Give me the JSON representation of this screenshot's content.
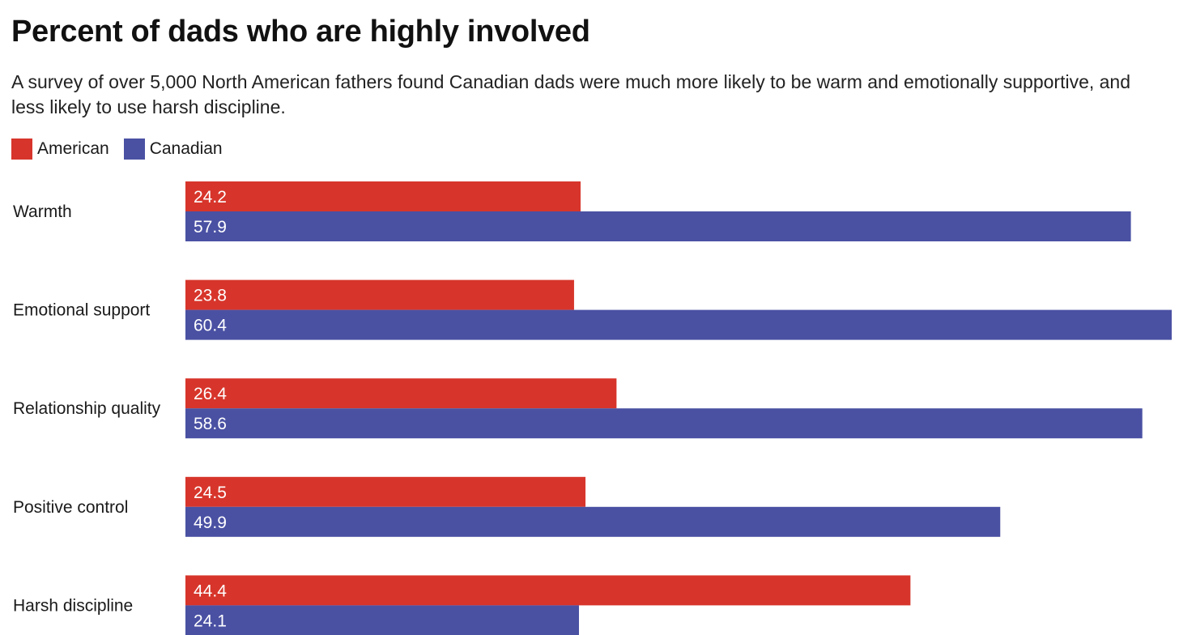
{
  "chart_data": {
    "type": "bar",
    "orientation": "horizontal",
    "title": "Percent of dads who are highly involved",
    "subtitle": "A survey of over 5,000 North American fathers found Canadian dads were much more likely to be warm and emotionally supportive, and less likely to use harsh discipline.",
    "categories": [
      "Warmth",
      "Emotional support",
      "Relationship quality",
      "Positive control",
      "Harsh discipline"
    ],
    "series": [
      {
        "name": "American",
        "color": "#d7352b",
        "values": [
          24.2,
          23.8,
          26.4,
          24.5,
          44.4
        ]
      },
      {
        "name": "Canadian",
        "color": "#4a51a3",
        "values": [
          57.9,
          60.4,
          58.6,
          49.9,
          24.1
        ]
      }
    ],
    "xlim": [
      0,
      60.4
    ],
    "grid": false,
    "legend_position": "top-left"
  }
}
